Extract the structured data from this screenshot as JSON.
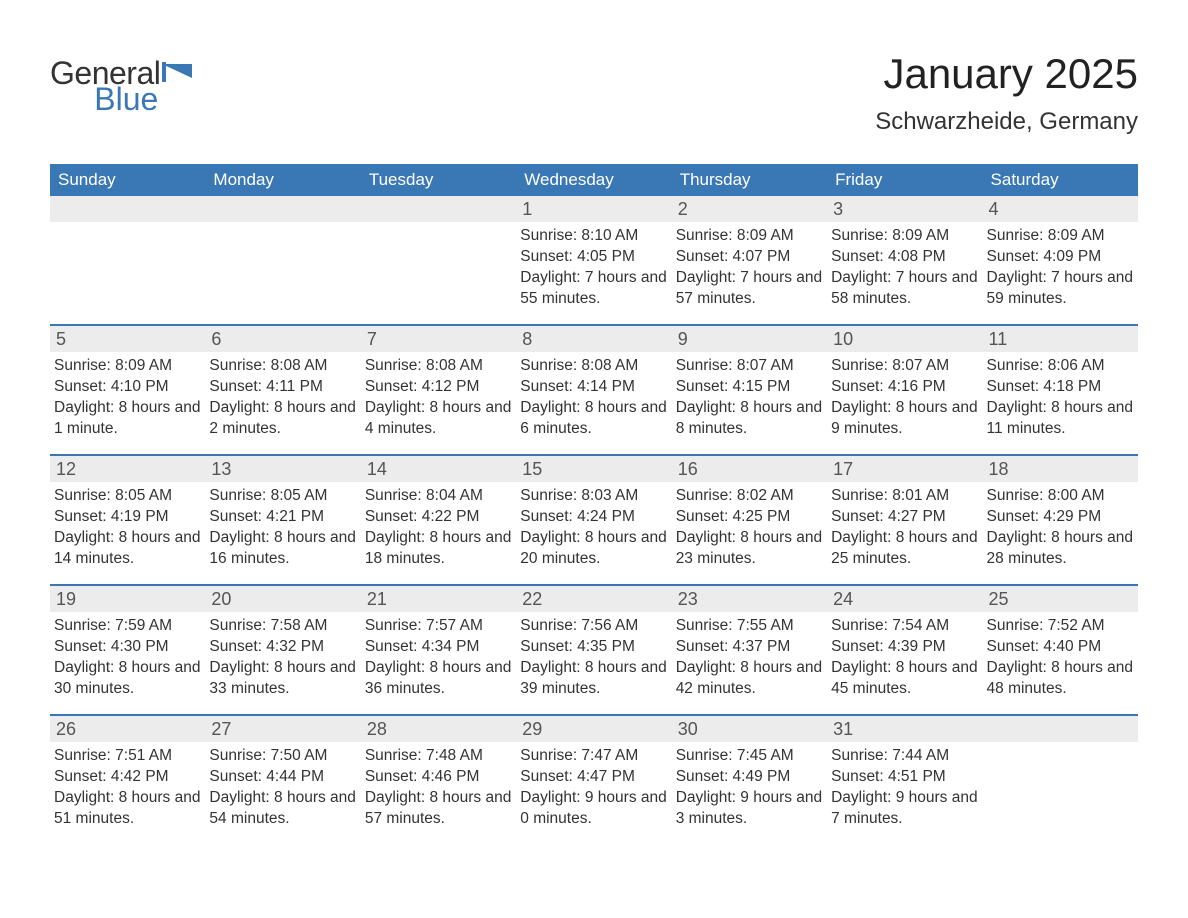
{
  "logo": {
    "word1": "General",
    "word2": "Blue"
  },
  "title": "January 2025",
  "location": "Schwarzheide, Germany",
  "colors": {
    "header_bg": "#3a78b5",
    "header_text": "#ffffff",
    "daynum_bg": "#ececec",
    "daynum_text": "#555555",
    "body_text": "#333333",
    "rule": "#3a78b5",
    "page_bg": "#ffffff",
    "logo_gray": "#333333",
    "logo_blue": "#3a78b5"
  },
  "layout": {
    "columns": 7,
    "rows": 5,
    "title_fontsize": 42,
    "location_fontsize": 24,
    "dow_fontsize": 17,
    "daynum_fontsize": 18,
    "body_fontsize": 15.5
  },
  "days_of_week": [
    "Sunday",
    "Monday",
    "Tuesday",
    "Wednesday",
    "Thursday",
    "Friday",
    "Saturday"
  ],
  "weeks": [
    [
      {
        "blank": true
      },
      {
        "blank": true
      },
      {
        "blank": true
      },
      {
        "n": "1",
        "sunrise": "8:10 AM",
        "sunset": "4:05 PM",
        "daylight": "7 hours and 55 minutes."
      },
      {
        "n": "2",
        "sunrise": "8:09 AM",
        "sunset": "4:07 PM",
        "daylight": "7 hours and 57 minutes."
      },
      {
        "n": "3",
        "sunrise": "8:09 AM",
        "sunset": "4:08 PM",
        "daylight": "7 hours and 58 minutes."
      },
      {
        "n": "4",
        "sunrise": "8:09 AM",
        "sunset": "4:09 PM",
        "daylight": "7 hours and 59 minutes."
      }
    ],
    [
      {
        "n": "5",
        "sunrise": "8:09 AM",
        "sunset": "4:10 PM",
        "daylight": "8 hours and 1 minute."
      },
      {
        "n": "6",
        "sunrise": "8:08 AM",
        "sunset": "4:11 PM",
        "daylight": "8 hours and 2 minutes."
      },
      {
        "n": "7",
        "sunrise": "8:08 AM",
        "sunset": "4:12 PM",
        "daylight": "8 hours and 4 minutes."
      },
      {
        "n": "8",
        "sunrise": "8:08 AM",
        "sunset": "4:14 PM",
        "daylight": "8 hours and 6 minutes."
      },
      {
        "n": "9",
        "sunrise": "8:07 AM",
        "sunset": "4:15 PM",
        "daylight": "8 hours and 8 minutes."
      },
      {
        "n": "10",
        "sunrise": "8:07 AM",
        "sunset": "4:16 PM",
        "daylight": "8 hours and 9 minutes."
      },
      {
        "n": "11",
        "sunrise": "8:06 AM",
        "sunset": "4:18 PM",
        "daylight": "8 hours and 11 minutes."
      }
    ],
    [
      {
        "n": "12",
        "sunrise": "8:05 AM",
        "sunset": "4:19 PM",
        "daylight": "8 hours and 14 minutes."
      },
      {
        "n": "13",
        "sunrise": "8:05 AM",
        "sunset": "4:21 PM",
        "daylight": "8 hours and 16 minutes."
      },
      {
        "n": "14",
        "sunrise": "8:04 AM",
        "sunset": "4:22 PM",
        "daylight": "8 hours and 18 minutes."
      },
      {
        "n": "15",
        "sunrise": "8:03 AM",
        "sunset": "4:24 PM",
        "daylight": "8 hours and 20 minutes."
      },
      {
        "n": "16",
        "sunrise": "8:02 AM",
        "sunset": "4:25 PM",
        "daylight": "8 hours and 23 minutes."
      },
      {
        "n": "17",
        "sunrise": "8:01 AM",
        "sunset": "4:27 PM",
        "daylight": "8 hours and 25 minutes."
      },
      {
        "n": "18",
        "sunrise": "8:00 AM",
        "sunset": "4:29 PM",
        "daylight": "8 hours and 28 minutes."
      }
    ],
    [
      {
        "n": "19",
        "sunrise": "7:59 AM",
        "sunset": "4:30 PM",
        "daylight": "8 hours and 30 minutes."
      },
      {
        "n": "20",
        "sunrise": "7:58 AM",
        "sunset": "4:32 PM",
        "daylight": "8 hours and 33 minutes."
      },
      {
        "n": "21",
        "sunrise": "7:57 AM",
        "sunset": "4:34 PM",
        "daylight": "8 hours and 36 minutes."
      },
      {
        "n": "22",
        "sunrise": "7:56 AM",
        "sunset": "4:35 PM",
        "daylight": "8 hours and 39 minutes."
      },
      {
        "n": "23",
        "sunrise": "7:55 AM",
        "sunset": "4:37 PM",
        "daylight": "8 hours and 42 minutes."
      },
      {
        "n": "24",
        "sunrise": "7:54 AM",
        "sunset": "4:39 PM",
        "daylight": "8 hours and 45 minutes."
      },
      {
        "n": "25",
        "sunrise": "7:52 AM",
        "sunset": "4:40 PM",
        "daylight": "8 hours and 48 minutes."
      }
    ],
    [
      {
        "n": "26",
        "sunrise": "7:51 AM",
        "sunset": "4:42 PM",
        "daylight": "8 hours and 51 minutes."
      },
      {
        "n": "27",
        "sunrise": "7:50 AM",
        "sunset": "4:44 PM",
        "daylight": "8 hours and 54 minutes."
      },
      {
        "n": "28",
        "sunrise": "7:48 AM",
        "sunset": "4:46 PM",
        "daylight": "8 hours and 57 minutes."
      },
      {
        "n": "29",
        "sunrise": "7:47 AM",
        "sunset": "4:47 PM",
        "daylight": "9 hours and 0 minutes."
      },
      {
        "n": "30",
        "sunrise": "7:45 AM",
        "sunset": "4:49 PM",
        "daylight": "9 hours and 3 minutes."
      },
      {
        "n": "31",
        "sunrise": "7:44 AM",
        "sunset": "4:51 PM",
        "daylight": "9 hours and 7 minutes."
      },
      {
        "blank": true
      }
    ]
  ],
  "labels": {
    "sunrise": "Sunrise:",
    "sunset": "Sunset:",
    "daylight": "Daylight:"
  }
}
